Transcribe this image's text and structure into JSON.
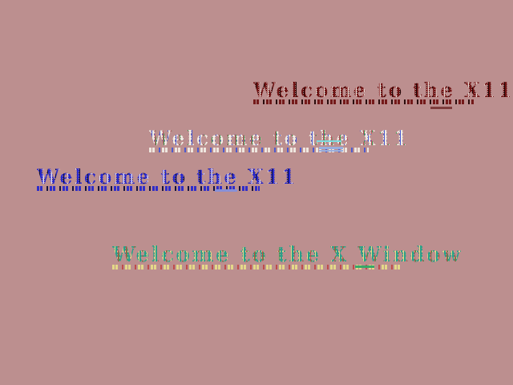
{
  "desktop": {
    "background_color": "#bc8f8f"
  },
  "banners": [
    {
      "name": "maroon-banner",
      "text": "Welcome to the X11",
      "legibility": "glitched",
      "palette": [
        "#701414",
        "#220606",
        "#a05050",
        "#e8d8d0"
      ],
      "underline_color": "#7e3c3c"
    },
    {
      "name": "rainbow-banner",
      "text": "Welcome to the X11",
      "legibility": "glitched",
      "palette": [
        "#f0eae2",
        "#4858d0",
        "#c05060",
        "#3c9850"
      ],
      "underline_color": "#98aede",
      "streak_color": "#7adce0"
    },
    {
      "name": "blue-banner",
      "text": "Welcome to the X11",
      "legibility": "glitched",
      "palette": [
        "#2828cc",
        "#0c0c3a",
        "#7a7ae6",
        "#e8e0f0"
      ],
      "underline_color": "#8890d8"
    },
    {
      "name": "teal-banner",
      "text": "Welcome to the X Window",
      "legibility": "glitched",
      "palette": [
        "#2ca088",
        "#e6dc88",
        "#c04848",
        "#3a9a50"
      ],
      "underline_color": "#38a868"
    }
  ]
}
